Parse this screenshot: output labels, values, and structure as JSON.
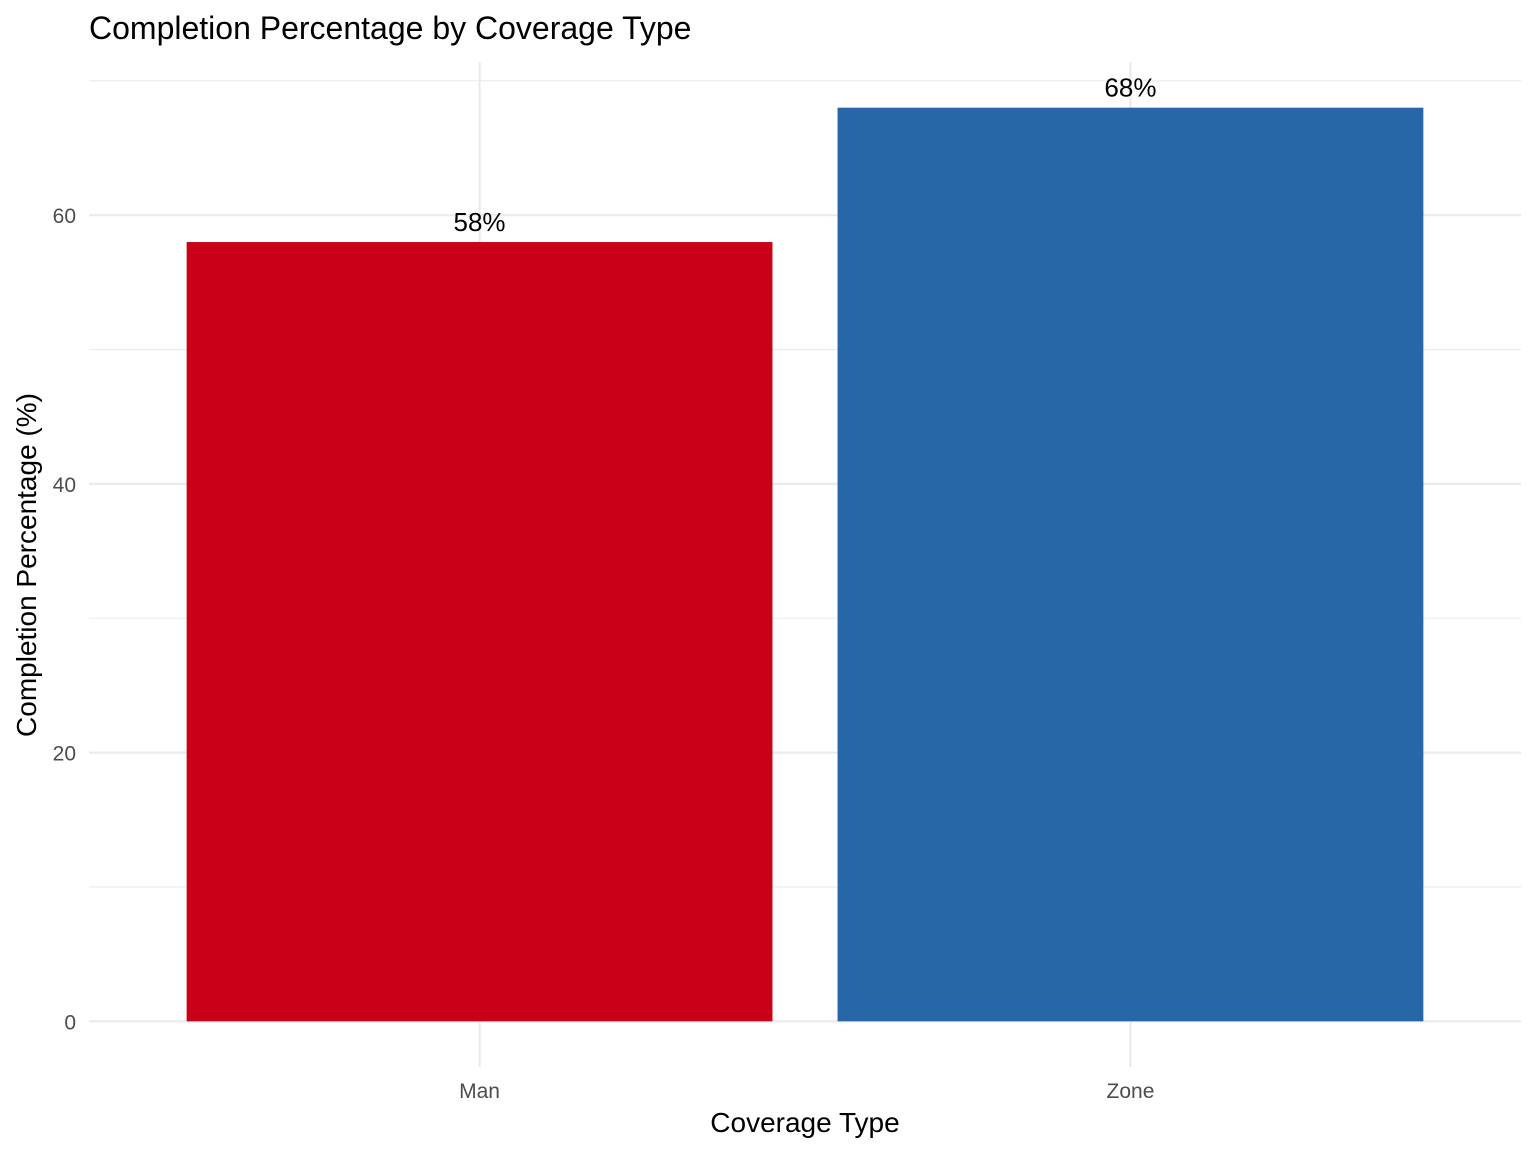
{
  "chart_data": {
    "type": "bar",
    "title": "Completion Percentage by Coverage Type",
    "xlabel": "Coverage Type",
    "ylabel": "Completion Percentage (%)",
    "categories": [
      "Man",
      "Zone"
    ],
    "values": [
      58,
      68
    ],
    "data_labels": [
      "58%",
      "68%"
    ],
    "colors": [
      "#CA0019",
      "#2767A8"
    ],
    "ylim": [
      -3.4,
      71.4
    ],
    "y_ticks": [
      0,
      20,
      40,
      60
    ],
    "y_tick_labels": [
      "0",
      "20",
      "40",
      "60"
    ],
    "y_minor_ticks": [
      10,
      30,
      50,
      70
    ],
    "grid": true,
    "legend": "none"
  }
}
